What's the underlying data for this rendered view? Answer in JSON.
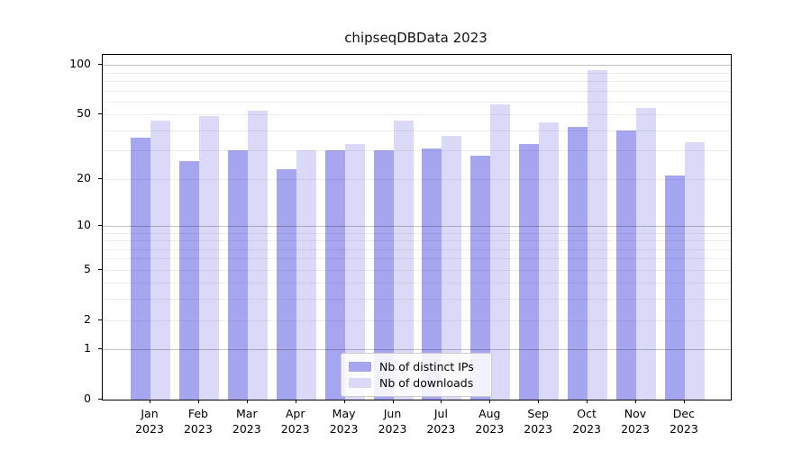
{
  "title": "chipseqDBData 2023",
  "colors": {
    "series_dark": "#a5a5f0",
    "series_light": "#dadaf8",
    "axis": "#000000",
    "legend_border": "#cccccc"
  },
  "chart_data": {
    "type": "bar",
    "title": "chipseqDBData 2023",
    "xlabel": "",
    "ylabel": "",
    "yscale": "log1p",
    "ylim": [
      0,
      115
    ],
    "grid": true,
    "legend_position": "lower center",
    "y_ticks": [
      0,
      1,
      2,
      5,
      10,
      20,
      50,
      100
    ],
    "y_minor_grid": [
      2,
      3,
      4,
      5,
      6,
      7,
      8,
      9,
      20,
      30,
      40,
      50,
      60,
      70,
      80,
      90
    ],
    "y_major_grid": [
      1,
      10,
      100
    ],
    "categories": [
      [
        "Jan",
        "2023"
      ],
      [
        "Feb",
        "2023"
      ],
      [
        "Mar",
        "2023"
      ],
      [
        "Apr",
        "2023"
      ],
      [
        "May",
        "2023"
      ],
      [
        "Jun",
        "2023"
      ],
      [
        "Jul",
        "2023"
      ],
      [
        "Aug",
        "2023"
      ],
      [
        "Sep",
        "2023"
      ],
      [
        "Oct",
        "2023"
      ],
      [
        "Nov",
        "2023"
      ],
      [
        "Dec",
        "2023"
      ]
    ],
    "series": [
      {
        "name": "Nb of distinct IPs",
        "color": "#a5a5f0",
        "values": [
          36,
          26,
          30,
          23,
          30,
          30,
          31,
          28,
          33,
          42,
          40,
          21
        ]
      },
      {
        "name": "Nb of downloads",
        "color": "#dadaf8",
        "values": [
          46,
          49,
          53,
          30,
          33,
          46,
          37,
          58,
          45,
          93,
          55,
          34
        ]
      }
    ]
  }
}
